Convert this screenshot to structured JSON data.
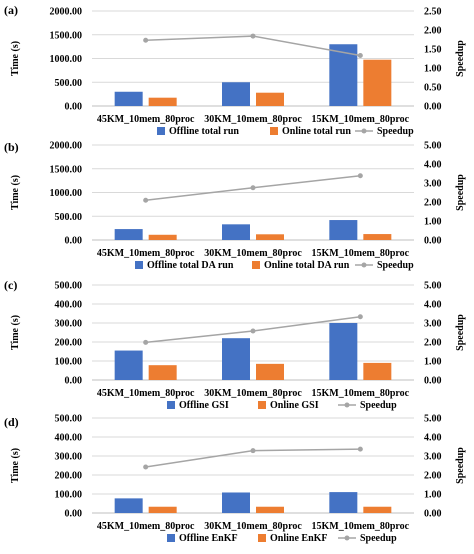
{
  "chart_data": [
    {
      "type": "bar",
      "panel_label": "(a)",
      "categories": [
        "45KM_10mem_80proc",
        "30KM_10mem_80proc",
        "15KM_10mem_80proc"
      ],
      "ylabel": "Time (s)",
      "y2label": "Speedup",
      "ylim": [
        0,
        2000
      ],
      "ytick_labels": [
        "0.00",
        "500.00",
        "1000.00",
        "1500.00",
        "2000.00"
      ],
      "y2lim": [
        0,
        2.5
      ],
      "y2tick_labels": [
        "0.00",
        "0.50",
        "1.00",
        "1.50",
        "2.00",
        "2.50"
      ],
      "grid": true,
      "legend_position": "bottom",
      "series": [
        {
          "name": "Offline total run",
          "type": "bar",
          "axis": "left",
          "color": "#4472C4",
          "values": [
            300,
            500,
            1300
          ]
        },
        {
          "name": "Online total run",
          "type": "bar",
          "axis": "left",
          "color": "#ED7D31",
          "values": [
            175,
            280,
            975
          ]
        },
        {
          "name": "Speedup",
          "type": "line",
          "axis": "right",
          "color": "#A5A5A5",
          "values": [
            1.73,
            1.84,
            1.33
          ]
        }
      ]
    },
    {
      "type": "bar",
      "panel_label": "(b)",
      "categories": [
        "45KM_10mem_80proc",
        "30KM_10mem_80proc",
        "15KM_10mem_80proc"
      ],
      "ylabel": "Time (s)",
      "y2label": "Speedup",
      "ylim": [
        0,
        2000
      ],
      "ytick_labels": [
        "0.00",
        "500.00",
        "1000.00",
        "1500.00",
        "2000.00"
      ],
      "y2lim": [
        0,
        5
      ],
      "y2tick_labels": [
        "0.00",
        "1.00",
        "2.00",
        "3.00",
        "4.00",
        "5.00"
      ],
      "grid": true,
      "legend_position": "bottom",
      "series": [
        {
          "name": "Offline total DA run",
          "type": "bar",
          "axis": "left",
          "color": "#4472C4",
          "values": [
            230,
            330,
            420
          ]
        },
        {
          "name": "Online total DA run",
          "type": "bar",
          "axis": "left",
          "color": "#ED7D31",
          "values": [
            110,
            120,
            125
          ]
        },
        {
          "name": "Speedup",
          "type": "line",
          "axis": "right",
          "color": "#A5A5A5",
          "values": [
            2.09,
            2.75,
            3.38
          ]
        }
      ]
    },
    {
      "type": "bar",
      "panel_label": "(c)",
      "categories": [
        "45KM_10mem_80proc",
        "30KM_10mem_80proc",
        "15KM_10mem_80proc"
      ],
      "ylabel": "Time (s)",
      "y2label": "Speedup",
      "ylim": [
        0,
        500
      ],
      "ytick_labels": [
        "0.00",
        "100.00",
        "200.00",
        "300.00",
        "400.00",
        "500.00"
      ],
      "y2lim": [
        0,
        5
      ],
      "y2tick_labels": [
        "0.00",
        "1.00",
        "2.00",
        "3.00",
        "4.00",
        "5.00"
      ],
      "grid": true,
      "legend_position": "bottom",
      "series": [
        {
          "name": "Offline GSI",
          "type": "bar",
          "axis": "left",
          "color": "#4472C4",
          "values": [
            155,
            220,
            300
          ]
        },
        {
          "name": "Online GSI",
          "type": "bar",
          "axis": "left",
          "color": "#ED7D31",
          "values": [
            78,
            85,
            90
          ]
        },
        {
          "name": "Speedup",
          "type": "line",
          "axis": "right",
          "color": "#A5A5A5",
          "values": [
            1.98,
            2.58,
            3.33
          ]
        }
      ]
    },
    {
      "type": "bar",
      "panel_label": "(d)",
      "categories": [
        "45KM_10mem_80proc",
        "30KM_10mem_80proc",
        "15KM_10mem_80proc"
      ],
      "ylabel": "Time (s)",
      "y2label": "Speedup",
      "ylim": [
        0,
        500
      ],
      "ytick_labels": [
        "0.00",
        "100.00",
        "200.00",
        "300.00",
        "400.00",
        "500.00"
      ],
      "y2lim": [
        0,
        5
      ],
      "y2tick_labels": [
        "0.00",
        "1.00",
        "2.00",
        "3.00",
        "4.00",
        "5.00"
      ],
      "grid": true,
      "legend_position": "bottom",
      "series": [
        {
          "name": "Offline EnKF",
          "type": "bar",
          "axis": "left",
          "color": "#4472C4",
          "values": [
            77,
            108,
            110
          ]
        },
        {
          "name": "Online EnKF",
          "type": "bar",
          "axis": "left",
          "color": "#ED7D31",
          "values": [
            33,
            33,
            33
          ]
        },
        {
          "name": "Speedup",
          "type": "line",
          "axis": "right",
          "color": "#A5A5A5",
          "values": [
            2.42,
            3.28,
            3.36
          ]
        }
      ]
    }
  ]
}
